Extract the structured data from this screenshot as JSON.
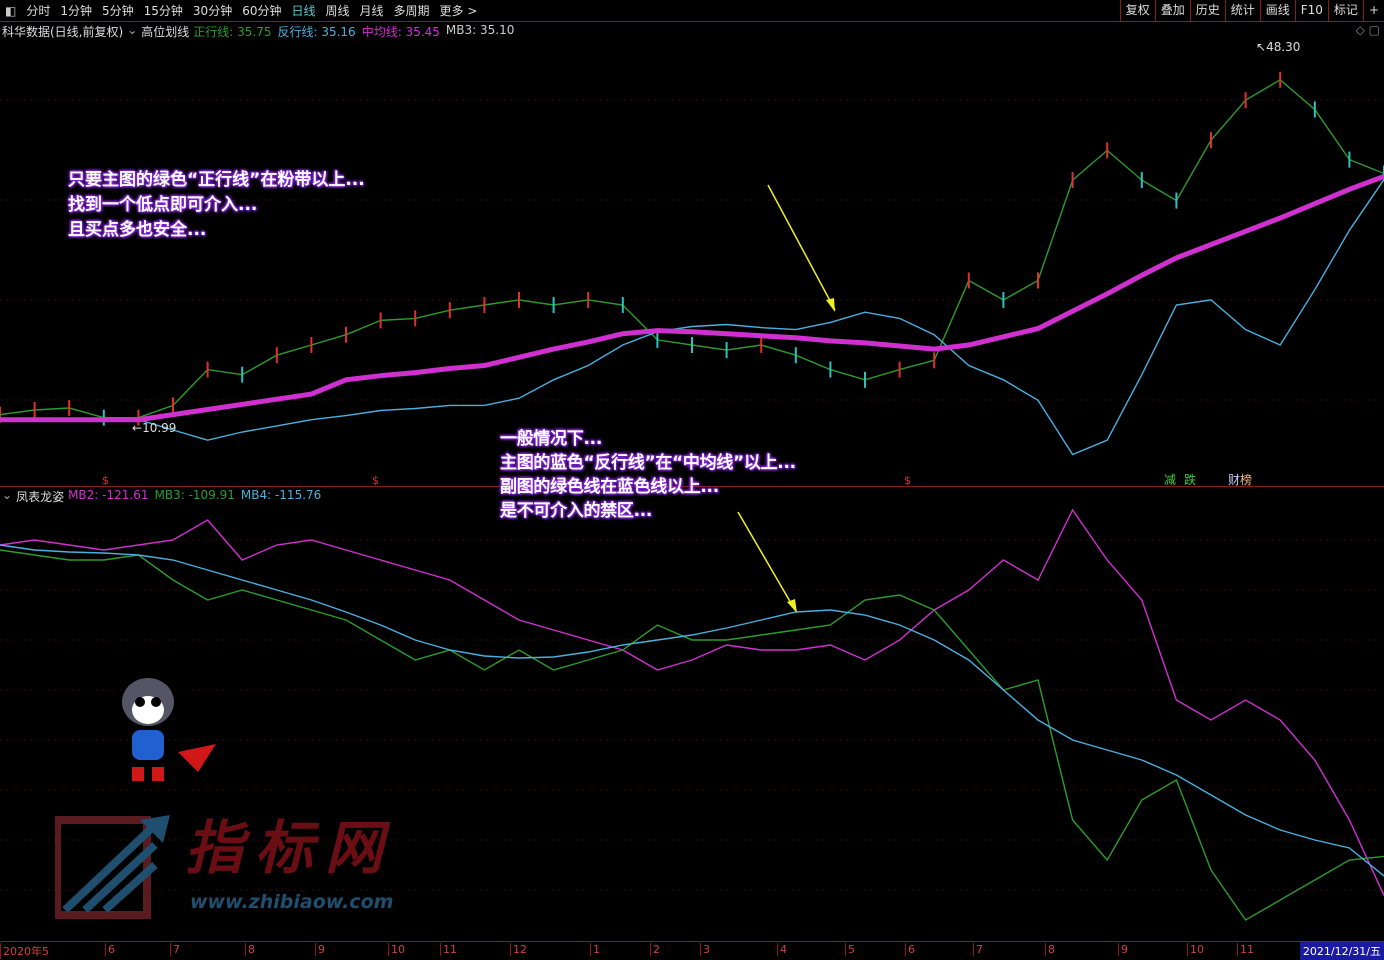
{
  "toolbar": {
    "items": [
      "分时",
      "1分钟",
      "5分钟",
      "15分钟",
      "30分钟",
      "60分钟",
      "日线",
      "周线",
      "月线",
      "多周期",
      "更多 >"
    ],
    "active": "日线",
    "right_items": [
      "复权",
      "叠加",
      "历史",
      "统计",
      "画线",
      "F10",
      "标记",
      "+"
    ]
  },
  "main_legend": {
    "title": "科华数据(日线,前复权)",
    "indicator": "高位划线",
    "items": [
      {
        "label": "正行线: 35.75",
        "color": "#2e9b2e"
      },
      {
        "label": "反行线: 35.16",
        "color": "#4ab0e0"
      },
      {
        "label": "中均线: 35.45",
        "color": "#d030d0"
      },
      {
        "label": "MB3: 35.10",
        "color": "#cccccc"
      }
    ]
  },
  "sub_legend": {
    "indicator": "凤表龙姿",
    "items": [
      {
        "label": "MB2: -121.61",
        "color": "#d030d0"
      },
      {
        "label": "MB3: -109.91",
        "color": "#2e9b2e"
      },
      {
        "label": "MB4: -115.76",
        "color": "#4ab0e0"
      }
    ]
  },
  "annotations": {
    "a1": [
      "只要主图的绿色“正行线”在粉带以上...",
      "找到一个低点即可介入...",
      "且买点多也安全..."
    ],
    "a2": [
      "一般情况下...",
      "主图的蓝色“反行线”在“中均线”以上...",
      "副图的绿色线在蓝色线以上...",
      "是不可介入的禁区..."
    ]
  },
  "markers": {
    "high": "48.30",
    "low": "10.99",
    "signals": [
      "减",
      "跌",
      "财",
      "榜"
    ],
    "dollar": "$"
  },
  "xaxis": {
    "labels": [
      "2020年5",
      "6",
      "7",
      "8",
      "9",
      "10",
      "11",
      "12",
      "1",
      "2",
      "3",
      "4",
      "5",
      "6",
      "7",
      "8",
      "9",
      "10",
      "11"
    ],
    "end": "2021/12/31/五"
  },
  "logo": {
    "text": "指标网",
    "url": "www.zhibiaow.com"
  },
  "chart_data": [
    {
      "type": "line",
      "title": "高位划线",
      "ylim": [
        8,
        50
      ],
      "series": [
        {
          "name": "正行线",
          "color": "#2e9b2e",
          "values": [
            12.2,
            12.65,
            12.85,
            11.9,
            11.9,
            13.1,
            16.6,
            16.1,
            18.0,
            19.0,
            20.0,
            21.4,
            21.6,
            22.4,
            22.9,
            23.4,
            22.9,
            23.4,
            22.9,
            19.5,
            19.0,
            18.5,
            19.0,
            18.0,
            16.6,
            15.6,
            16.6,
            17.5,
            25.3,
            23.4,
            25.3,
            35.1,
            38.0,
            35.1,
            33.1,
            39.0,
            42.9,
            44.9,
            42.0,
            37.1,
            35.75
          ]
        },
        {
          "name": "反行线",
          "color": "#4ab0e0",
          "values": [
            11.7,
            11.7,
            11.7,
            11.7,
            11.7,
            10.7,
            9.7,
            10.5,
            11.1,
            11.7,
            12.1,
            12.6,
            12.8,
            13.1,
            13.1,
            13.8,
            15.6,
            17.0,
            19.0,
            20.3,
            20.8,
            21.0,
            20.7,
            20.5,
            21.2,
            22.2,
            21.6,
            20.0,
            17.0,
            15.6,
            13.6,
            8.3,
            9.7,
            16.1,
            22.9,
            23.4,
            20.5,
            19.0,
            24.4,
            30.2,
            35.16
          ]
        },
        {
          "name": "中均线",
          "color": "#d030d0",
          "values": [
            11.7,
            11.7,
            11.7,
            11.7,
            11.7,
            12.2,
            12.7,
            13.2,
            13.7,
            14.2,
            15.6,
            16.0,
            16.3,
            16.7,
            17.0,
            17.8,
            18.6,
            19.3,
            20.1,
            20.4,
            20.3,
            20.1,
            19.9,
            19.7,
            19.4,
            19.2,
            18.9,
            18.6,
            19.0,
            19.8,
            20.6,
            22.3,
            24.0,
            25.8,
            27.5,
            28.8,
            30.1,
            31.4,
            32.8,
            34.2,
            35.45
          ]
        }
      ]
    },
    {
      "type": "line",
      "title": "凤表龙姿",
      "ylim": [
        -135,
        0
      ],
      "series": [
        {
          "name": "MB2",
          "color": "#d030d0",
          "values": [
            -16.5,
            -15,
            -16.5,
            -18,
            -16.5,
            -15,
            -9,
            -21,
            -16.5,
            -15,
            -18,
            -21,
            -24,
            -27,
            -33,
            -39,
            -42,
            -45,
            -48,
            -54,
            -51,
            -46.5,
            -48,
            -48,
            -46.5,
            -51,
            -45,
            -36,
            -30,
            -21,
            -27,
            -6,
            -21,
            -33,
            -63,
            -69,
            -63,
            -69,
            -81,
            -99,
            -121.61
          ]
        },
        {
          "name": "MB3",
          "color": "#2e9b2e",
          "values": [
            -18,
            -19.5,
            -21,
            -21,
            -19.5,
            -27,
            -33,
            -30,
            -33,
            -36,
            -39,
            -45,
            -51,
            -48,
            -54,
            -48,
            -54,
            -51,
            -48,
            -40.5,
            -45,
            -45,
            -43.5,
            -42,
            -40.5,
            -33,
            -31.5,
            -36,
            -48,
            -60,
            -57,
            -99,
            -111,
            -93,
            -87,
            -114,
            -129,
            -123,
            -117,
            -111,
            -109.91
          ]
        },
        {
          "name": "MB4",
          "color": "#4ab0e0",
          "values": [
            -16.5,
            -18,
            -18.6,
            -18.9,
            -19.5,
            -21,
            -24,
            -27,
            -30,
            -33,
            -36.6,
            -40.5,
            -45,
            -48,
            -49.8,
            -50.4,
            -50.1,
            -48.6,
            -46.5,
            -45,
            -43.5,
            -41.4,
            -39,
            -36.6,
            -36,
            -37.5,
            -40.5,
            -45,
            -51,
            -60,
            -69,
            -75,
            -78,
            -81,
            -85.5,
            -91.5,
            -97.5,
            -102,
            -105,
            -107.4,
            -115.76
          ]
        }
      ]
    }
  ]
}
